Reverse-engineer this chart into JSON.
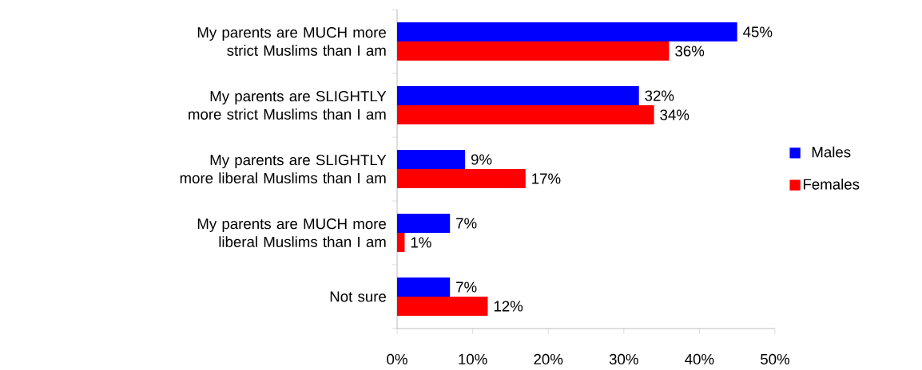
{
  "chart_data": {
    "type": "bar",
    "orientation": "horizontal",
    "categories": [
      "My parents are MUCH more strict Muslims than I am",
      "My parents are SLIGHTLY more strict Muslims than I am",
      "My parents are SLIGHTLY more liberal Muslims than I am",
      "My parents are MUCH more liberal Muslims than I am",
      "Not sure"
    ],
    "series": [
      {
        "name": "Males",
        "color": "#0000ff",
        "values": [
          45,
          32,
          9,
          7,
          7
        ],
        "value_labels": [
          "45%",
          "32%",
          "9%",
          "7%",
          "7%"
        ]
      },
      {
        "name": "Females",
        "color": "#ff0000",
        "values": [
          36,
          34,
          17,
          1,
          12
        ],
        "value_labels": [
          "36%",
          "34%",
          "17%",
          "1%",
          "12%"
        ]
      }
    ],
    "xlim": [
      0,
      50
    ],
    "xticks": [
      {
        "value": 0,
        "label": "0%"
      },
      {
        "value": 10,
        "label": "10%"
      },
      {
        "value": 20,
        "label": "20%"
      },
      {
        "value": 30,
        "label": "30%"
      },
      {
        "value": 40,
        "label": "40%"
      },
      {
        "value": 50,
        "label": "50%"
      }
    ],
    "legend": "right",
    "grid": false
  }
}
